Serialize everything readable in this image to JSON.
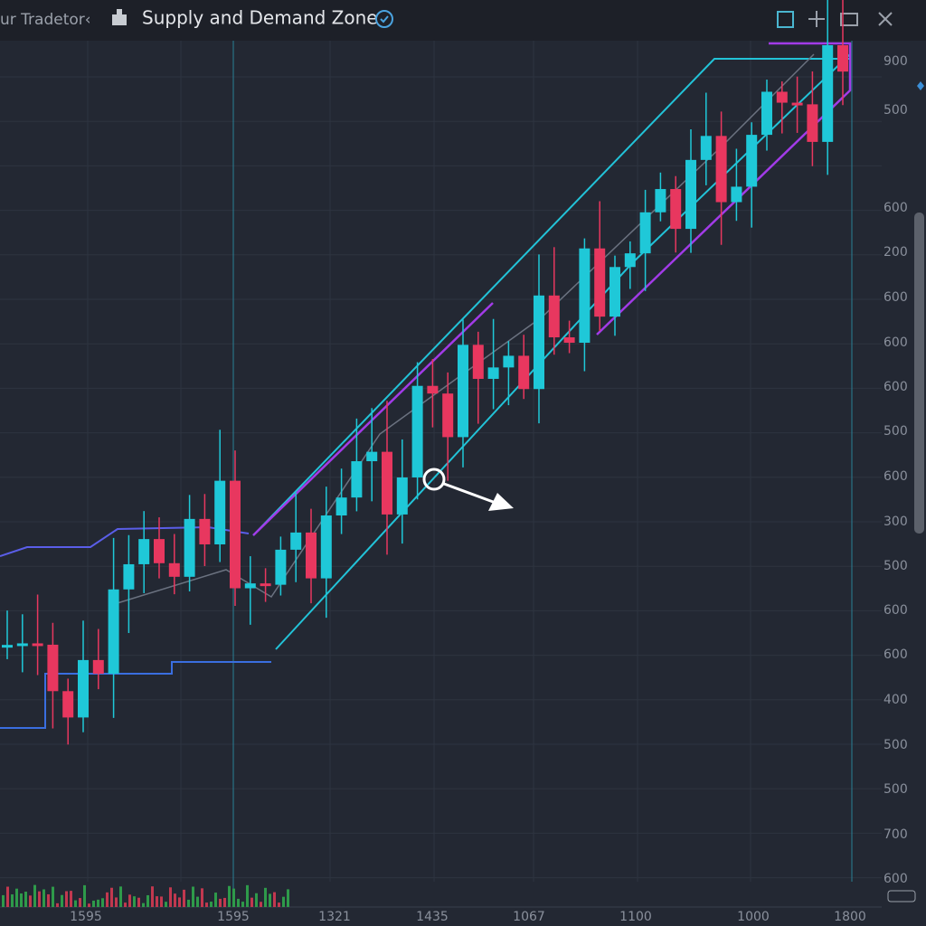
{
  "header": {
    "app_name": "ur Tradetor‹",
    "title": "Supply and Demand Zone"
  },
  "y_axis_labels": [
    "900",
    "500",
    "600",
    "200",
    "600",
    "600",
    "600",
    "500",
    "600",
    "300",
    "500",
    "600",
    "600",
    "400",
    "500",
    "500",
    "700",
    "600"
  ],
  "x_axis_labels": [
    "1595",
    "1595",
    "1321",
    "1435",
    "1067",
    "1100",
    "1000",
    "1800"
  ]
}
